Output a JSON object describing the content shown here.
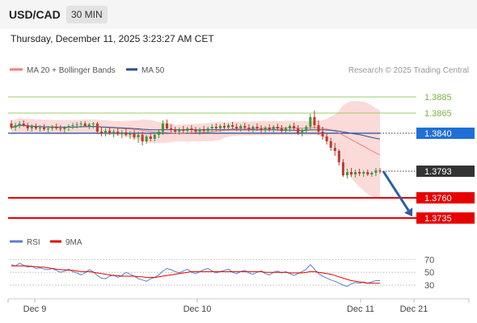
{
  "header": {
    "symbol": "USD/CAD",
    "timeframe": "30 MIN"
  },
  "timestamp": "Thursday, December 11, 2025 3:23:27 AM CET",
  "legend": {
    "ma20": {
      "label": "MA 20 + Bollinger Bands",
      "color": "#f08080"
    },
    "ma50": {
      "label": "MA 50",
      "color": "#2c4f8c"
    }
  },
  "credit": "Research © 2025 Trading Central",
  "colors": {
    "up": "#3a9a3a",
    "down": "#c0392b",
    "band": "#fbdada",
    "resistance": "#9ccc65",
    "support": "#e60000",
    "pivot": "#1f4e9c",
    "arrow": "#2a5fa8",
    "rsi": "#5b7fd1",
    "rsi_ma": "#e60000"
  },
  "levels": {
    "r2": {
      "label": "1.3885",
      "value": 1.3885
    },
    "r1": {
      "label": "1.3865",
      "value": 1.3865
    },
    "pivot": {
      "label": "1.3840",
      "value": 1.384
    },
    "last": {
      "label": "1.3793",
      "value": 1.3793
    },
    "s1": {
      "label": "1.3760",
      "value": 1.376
    },
    "s2": {
      "label": "1.3735",
      "value": 1.3735
    }
  },
  "rsi_legend": {
    "rsi": "RSI",
    "ma": "9MA"
  },
  "chart_data": [
    {
      "type": "line",
      "subtype": "candlestick",
      "x_ticks": [
        "Dec 9",
        "Dec 10",
        "Dec 11",
        "Dec 21"
      ],
      "y_range": [
        1.3725,
        1.3905
      ],
      "candles": [
        [
          1.3852,
          1.3856,
          1.3845,
          1.3847
        ],
        [
          1.3847,
          1.3853,
          1.3843,
          1.385
        ],
        [
          1.385,
          1.3855,
          1.3846,
          1.3852
        ],
        [
          1.3852,
          1.3856,
          1.3848,
          1.385
        ],
        [
          1.385,
          1.3853,
          1.3843,
          1.3846
        ],
        [
          1.3846,
          1.3851,
          1.3842,
          1.3848
        ],
        [
          1.3848,
          1.3852,
          1.3844,
          1.3846
        ],
        [
          1.3846,
          1.385,
          1.3842,
          1.3847
        ],
        [
          1.3847,
          1.3851,
          1.3843,
          1.3845
        ],
        [
          1.3845,
          1.3849,
          1.3841,
          1.3846
        ],
        [
          1.3846,
          1.385,
          1.3843,
          1.3848
        ],
        [
          1.3848,
          1.3852,
          1.3844,
          1.3846
        ],
        [
          1.3846,
          1.385,
          1.3842,
          1.3845
        ],
        [
          1.3845,
          1.3849,
          1.3841,
          1.3847
        ],
        [
          1.3847,
          1.3851,
          1.3843,
          1.3849
        ],
        [
          1.3849,
          1.3853,
          1.3845,
          1.385
        ],
        [
          1.385,
          1.3854,
          1.3846,
          1.3851
        ],
        [
          1.3851,
          1.3855,
          1.3847,
          1.3852
        ],
        [
          1.3852,
          1.3855,
          1.3848,
          1.3849
        ],
        [
          1.3849,
          1.3853,
          1.3845,
          1.3851
        ],
        [
          1.3851,
          1.3854,
          1.3846,
          1.3852
        ],
        [
          1.3852,
          1.3854,
          1.384,
          1.3842
        ],
        [
          1.3842,
          1.3848,
          1.3836,
          1.384
        ],
        [
          1.384,
          1.3846,
          1.3836,
          1.3843
        ],
        [
          1.3843,
          1.3847,
          1.3838,
          1.384
        ],
        [
          1.384,
          1.3845,
          1.3835,
          1.3842
        ],
        [
          1.3842,
          1.3847,
          1.3837,
          1.3839
        ],
        [
          1.3839,
          1.3844,
          1.3834,
          1.3841
        ],
        [
          1.3841,
          1.3846,
          1.3836,
          1.3838
        ],
        [
          1.3838,
          1.3843,
          1.3833,
          1.384
        ],
        [
          1.384,
          1.3844,
          1.3832,
          1.3835
        ],
        [
          1.3835,
          1.3842,
          1.3828,
          1.3838
        ],
        [
          1.3838,
          1.3842,
          1.3825,
          1.383
        ],
        [
          1.383,
          1.3838,
          1.3827,
          1.3836
        ],
        [
          1.3836,
          1.384,
          1.383,
          1.3833
        ],
        [
          1.3833,
          1.384,
          1.383,
          1.3838
        ],
        [
          1.3838,
          1.3844,
          1.3834,
          1.3842
        ],
        [
          1.3842,
          1.3856,
          1.3838,
          1.3852
        ],
        [
          1.3852,
          1.3857,
          1.3844,
          1.3846
        ],
        [
          1.3846,
          1.3851,
          1.3841,
          1.3844
        ],
        [
          1.3844,
          1.3848,
          1.3839,
          1.3842
        ],
        [
          1.3842,
          1.3847,
          1.3838,
          1.3845
        ],
        [
          1.3845,
          1.3849,
          1.384,
          1.3843
        ],
        [
          1.3843,
          1.3848,
          1.3839,
          1.3846
        ],
        [
          1.3846,
          1.385,
          1.3841,
          1.3844
        ],
        [
          1.3844,
          1.3848,
          1.3839,
          1.3842
        ],
        [
          1.3842,
          1.3847,
          1.3838,
          1.3845
        ],
        [
          1.3845,
          1.3849,
          1.3841,
          1.3843
        ],
        [
          1.3843,
          1.3848,
          1.3839,
          1.3846
        ],
        [
          1.3846,
          1.3851,
          1.3842,
          1.3848
        ],
        [
          1.3848,
          1.3852,
          1.3843,
          1.3846
        ],
        [
          1.3846,
          1.3851,
          1.3842,
          1.3849
        ],
        [
          1.3849,
          1.3853,
          1.3844,
          1.3847
        ],
        [
          1.3847,
          1.3852,
          1.3843,
          1.385
        ],
        [
          1.385,
          1.3854,
          1.3845,
          1.3848
        ],
        [
          1.3848,
          1.3852,
          1.3843,
          1.3846
        ],
        [
          1.3846,
          1.3851,
          1.3842,
          1.3849
        ],
        [
          1.3849,
          1.3853,
          1.3844,
          1.3847
        ],
        [
          1.3847,
          1.3851,
          1.3842,
          1.3845
        ],
        [
          1.3845,
          1.385,
          1.3841,
          1.3848
        ],
        [
          1.3848,
          1.3852,
          1.3843,
          1.3846
        ],
        [
          1.3846,
          1.385,
          1.3841,
          1.3844
        ],
        [
          1.3844,
          1.3849,
          1.384,
          1.3847
        ],
        [
          1.3847,
          1.3851,
          1.3842,
          1.3845
        ],
        [
          1.3845,
          1.385,
          1.3841,
          1.3848
        ],
        [
          1.3848,
          1.3852,
          1.3843,
          1.3846
        ],
        [
          1.3846,
          1.385,
          1.3841,
          1.3843
        ],
        [
          1.3843,
          1.3848,
          1.3839,
          1.3846
        ],
        [
          1.3846,
          1.3851,
          1.3842,
          1.3849
        ],
        [
          1.3849,
          1.3853,
          1.3844,
          1.3846
        ],
        [
          1.3846,
          1.385,
          1.3838,
          1.384
        ],
        [
          1.384,
          1.3846,
          1.3836,
          1.3844
        ],
        [
          1.3844,
          1.385,
          1.384,
          1.3848
        ],
        [
          1.3848,
          1.3864,
          1.3844,
          1.386
        ],
        [
          1.386,
          1.3868,
          1.3846,
          1.385
        ],
        [
          1.385,
          1.3856,
          1.3838,
          1.3842
        ],
        [
          1.3842,
          1.3848,
          1.3832,
          1.3836
        ],
        [
          1.3836,
          1.384,
          1.3826,
          1.383
        ],
        [
          1.383,
          1.3834,
          1.3818,
          1.3822
        ],
        [
          1.3822,
          1.3828,
          1.3812,
          1.3818
        ],
        [
          1.3818,
          1.382,
          1.38,
          1.3804
        ],
        [
          1.3804,
          1.3808,
          1.3786,
          1.3788
        ],
        [
          1.3788,
          1.3796,
          1.3784,
          1.3792
        ],
        [
          1.3792,
          1.3797,
          1.3786,
          1.3789
        ],
        [
          1.3789,
          1.3795,
          1.3785,
          1.3792
        ],
        [
          1.3792,
          1.3796,
          1.3787,
          1.379
        ],
        [
          1.379,
          1.3794,
          1.3786,
          1.3792
        ],
        [
          1.3792,
          1.3795,
          1.3787,
          1.3789
        ],
        [
          1.3789,
          1.3793,
          1.3786,
          1.3791
        ],
        [
          1.3791,
          1.3797,
          1.3787,
          1.3794
        ],
        [
          1.3794,
          1.3797,
          1.379,
          1.3793
        ]
      ]
    },
    {
      "type": "line",
      "name": "RSI",
      "y_ticks": [
        70,
        50,
        30
      ],
      "y_range": [
        15,
        78
      ],
      "series": [
        {
          "name": "RSI",
          "values": [
            62,
            60,
            64,
            61,
            58,
            60,
            56,
            57,
            55,
            54,
            56,
            53,
            50,
            52,
            55,
            51,
            49,
            46,
            49,
            54,
            51,
            45,
            41,
            40,
            44,
            46,
            42,
            45,
            50,
            47,
            44,
            40,
            38,
            36,
            40,
            42,
            46,
            52,
            56,
            54,
            51,
            49,
            52,
            55,
            50,
            48,
            51,
            54,
            56,
            52,
            49,
            51,
            53,
            55,
            50,
            48,
            51,
            53,
            49,
            47,
            50,
            52,
            48,
            46,
            50,
            52,
            49,
            51,
            48,
            45,
            48,
            51,
            55,
            62,
            55,
            48,
            44,
            41,
            38,
            36,
            33,
            30,
            28,
            32,
            34,
            33,
            35,
            33,
            35,
            37,
            37
          ]
        },
        {
          "name": "9MA",
          "values": [
            60,
            60,
            60,
            60,
            60,
            59,
            59,
            58,
            58,
            57,
            56,
            55,
            54,
            54,
            53,
            53,
            52,
            51,
            51,
            51,
            50,
            49,
            48,
            47,
            46,
            45,
            45,
            44,
            44,
            44,
            44,
            43,
            43,
            42,
            42,
            42,
            43,
            44,
            45,
            46,
            47,
            48,
            49,
            50,
            51,
            51,
            51,
            51,
            51,
            51,
            51,
            51,
            51,
            51,
            51,
            51,
            51,
            51,
            51,
            51,
            51,
            51,
            50,
            50,
            50,
            50,
            50,
            50,
            49,
            49,
            49,
            49,
            50,
            51,
            51,
            50,
            49,
            48,
            47,
            45,
            43,
            41,
            39,
            37,
            36,
            35,
            34,
            33,
            33,
            33,
            33
          ]
        }
      ]
    }
  ]
}
